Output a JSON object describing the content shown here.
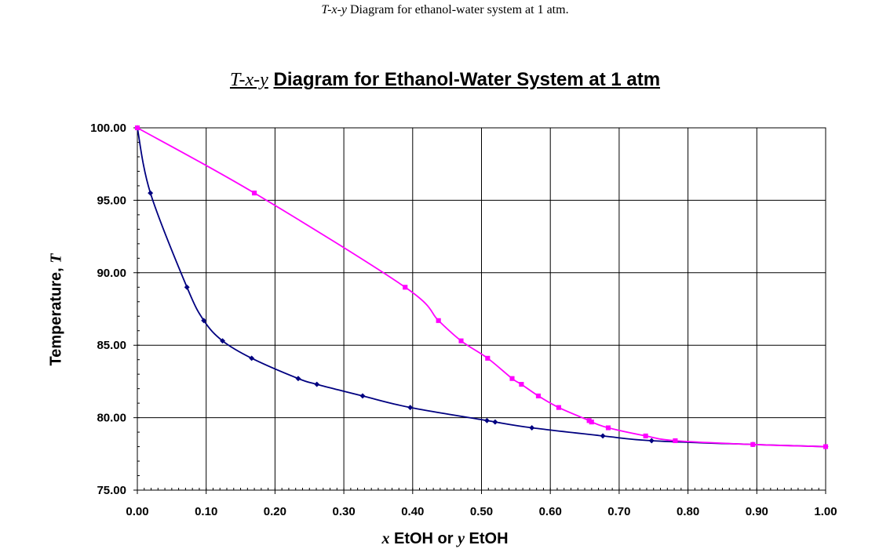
{
  "page_caption": {
    "var1": "T-x-y",
    "rest": " Diagram for ethanol-water system at 1 atm."
  },
  "chart_data": {
    "type": "line",
    "title_italic": "T-x-y",
    "title_rest": "Diagram for Ethanol-Water System at 1 atm",
    "ylabel_text": "Temperature, ",
    "ylabel_var": "T",
    "xlabel_parts": [
      "x",
      " EtOH or ",
      "y",
      " EtOH"
    ],
    "xlim": [
      0,
      1
    ],
    "ylim": [
      75,
      100
    ],
    "x_ticks": [
      "0.00",
      "0.10",
      "0.20",
      "0.30",
      "0.40",
      "0.50",
      "0.60",
      "0.70",
      "0.80",
      "0.90",
      "1.00"
    ],
    "y_ticks": [
      "75.00",
      "80.00",
      "85.00",
      "90.00",
      "95.00",
      "100.00"
    ],
    "grid": true,
    "series": [
      {
        "color": "#000080",
        "marker": "diamond",
        "x": [
          0.0,
          0.019,
          0.0721,
          0.0966,
          0.1238,
          0.1661,
          0.2337,
          0.2608,
          0.3273,
          0.3965,
          0.5079,
          0.5198,
          0.5732,
          0.6763,
          0.7472,
          0.8943,
          1.0
        ],
        "y": [
          100.0,
          95.5,
          89.0,
          86.7,
          85.3,
          84.1,
          82.7,
          82.3,
          81.5,
          80.7,
          79.8,
          79.7,
          79.3,
          78.74,
          78.41,
          78.15,
          78.0
        ]
      },
      {
        "color": "#FF00FF",
        "marker": "square",
        "x": [
          0.0,
          0.17,
          0.3891,
          0.4375,
          0.4704,
          0.5089,
          0.5445,
          0.558,
          0.5826,
          0.6122,
          0.6564,
          0.6599,
          0.6841,
          0.7385,
          0.7815,
          0.8943,
          1.0
        ],
        "y": [
          100.0,
          95.5,
          89.0,
          86.7,
          85.3,
          84.1,
          82.7,
          82.3,
          81.5,
          80.7,
          79.8,
          79.7,
          79.3,
          78.74,
          78.41,
          78.15,
          78.0
        ]
      }
    ]
  }
}
